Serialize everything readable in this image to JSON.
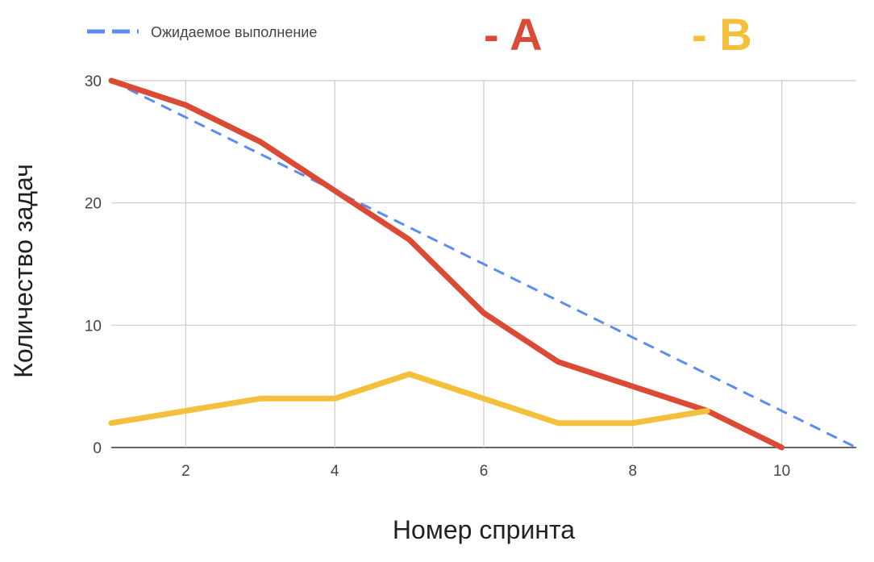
{
  "chart_data": {
    "type": "line",
    "title": "",
    "xlabel": "Номер спринта",
    "ylabel": "Количество задач",
    "xlim": [
      1,
      11
    ],
    "ylim": [
      0,
      30
    ],
    "x_ticks": [
      2,
      4,
      6,
      8,
      10
    ],
    "y_ticks": [
      0,
      10,
      20,
      30
    ],
    "grid": true,
    "legend_position": "top",
    "series": [
      {
        "name": "Ожидаемое выполнение",
        "style": "dashed",
        "color": "#5b8def",
        "x": [
          1,
          11
        ],
        "y": [
          30,
          0
        ]
      },
      {
        "name": "A",
        "style": "solid",
        "color": "#db4a35",
        "x": [
          1,
          2,
          3,
          4,
          5,
          6,
          7,
          8,
          9,
          10
        ],
        "y": [
          30,
          28,
          25,
          21,
          17,
          11,
          7,
          5,
          3,
          0
        ]
      },
      {
        "name": "B",
        "style": "solid",
        "color": "#f4bf3a",
        "x": [
          1,
          2,
          3,
          4,
          5,
          6,
          7,
          8,
          9
        ],
        "y": [
          2,
          3,
          4,
          4,
          6,
          4,
          2,
          2,
          3
        ]
      }
    ]
  },
  "legend": {
    "expected_label": "Ожидаемое выполнение",
    "a_label": "- A",
    "b_label": "- B"
  }
}
